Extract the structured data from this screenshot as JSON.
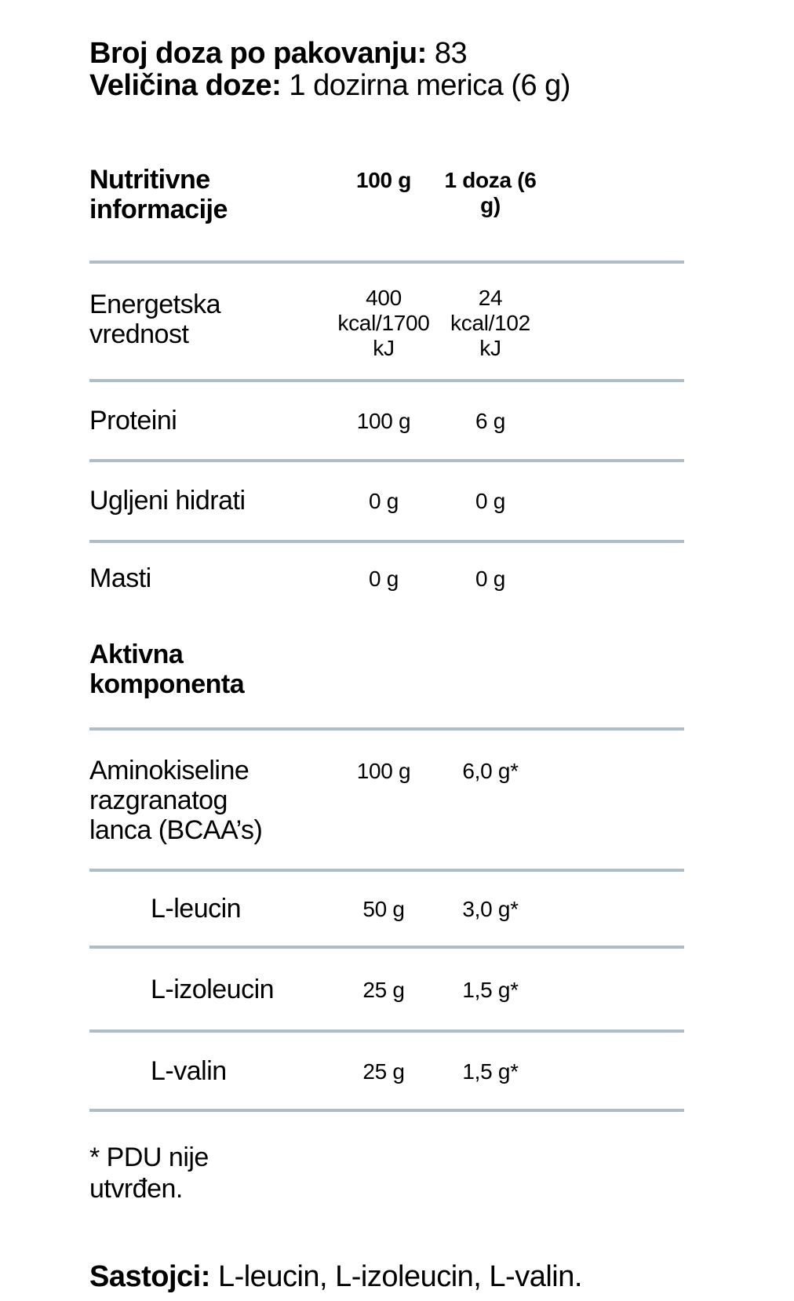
{
  "page": {
    "servings": {
      "label": "Broj doza po pakovanju:",
      "value": "83"
    },
    "serving_size": {
      "label": "Veličina doze:",
      "value": "1 dozirna merica (6 g)"
    }
  },
  "table": {
    "header": {
      "name": "Nutritivne informacije",
      "col_per_100g": "100 g",
      "col_per_dose": "1 doza (6 g)"
    },
    "rows": [
      {
        "name": "Energetska vrednost",
        "per_100g": "400 kcal/1700 kJ",
        "per_dose": "24 kcal/102 kJ"
      },
      {
        "name": "Proteini",
        "per_100g": "100 g",
        "per_dose": "6 g"
      },
      {
        "name": "Ugljeni hidrati",
        "per_100g": "0 g",
        "per_dose": "0 g"
      },
      {
        "name": "Masti",
        "per_100g": "0 g",
        "per_dose": "0 g"
      }
    ],
    "section_header": "Aktivna komponenta",
    "active_rows": [
      {
        "name": "Aminokiseline razgranatog lanca (BCAA’s)",
        "per_100g": "100 g",
        "per_dose": "6,0 g*"
      },
      {
        "name": "L-leucin",
        "per_100g": "50 g",
        "per_dose": "3,0 g*"
      },
      {
        "name": "L-izoleucin",
        "per_100g": "25 g",
        "per_dose": "1,5 g*"
      },
      {
        "name": "L-valin",
        "per_100g": "25 g",
        "per_dose": "1,5 g*"
      }
    ]
  },
  "footnote": "* PDU nije utvrđen.",
  "ingredients": {
    "label": "Sastojci:",
    "value": "L-leucin, L-izoleucin, L-valin."
  },
  "colors": {
    "divider": "#aebec8",
    "text": "#000000",
    "background": "#ffffff"
  }
}
